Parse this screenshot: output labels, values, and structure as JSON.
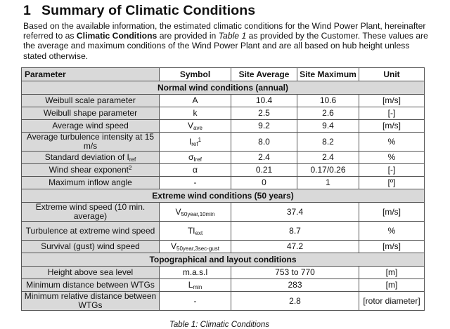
{
  "heading": {
    "number": "1",
    "title": "Summary of Climatic Conditions"
  },
  "intro": {
    "part1": "Based on the available information, the estimated climatic conditions for the Wind Power Plant, hereinafter referred to as ",
    "bold": "Climatic Conditions",
    "part2": " are provided in ",
    "italic": "Table 1",
    "part3": " as provided by the Customer. These values are the average and maximum conditions of the Wind Power Plant and are all based on hub height unless stated otherwise."
  },
  "table": {
    "headers": [
      "Parameter",
      "Symbol",
      "Site Average",
      "Site Maximum",
      "Unit"
    ],
    "sections": [
      {
        "title": "Normal wind conditions (annual)",
        "rows": [
          {
            "param": "Weibull scale parameter",
            "sym": "A",
            "sub": "",
            "sup": "",
            "avg": "10.4",
            "max": "10.6",
            "unit": "[m/s]"
          },
          {
            "param": "Weibull shape parameter",
            "sym": "k",
            "sub": "",
            "sup": "",
            "avg": "2.5",
            "max": "2.6",
            "unit": "[-]"
          },
          {
            "param": "Average wind speed",
            "sym": "V",
            "sub": "ave",
            "sup": "",
            "avg": "9.2",
            "max": "9.4",
            "unit": "[m/s]"
          },
          {
            "param": "Average turbulence intensity at 15 m/s",
            "sym": "I",
            "sub": "ref",
            "sup": "1",
            "avg": "8.0",
            "max": "8.2",
            "unit": "%"
          },
          {
            "param": "Standard deviation of I",
            "param_sub": "ref",
            "sym": "σ",
            "sub": "Iref",
            "sup": "",
            "avg": "2.4",
            "max": "2.4",
            "unit": "%"
          },
          {
            "param": "Wind shear exponent",
            "param_sup": "2",
            "sym": "α",
            "sub": "",
            "sup": "",
            "avg": "0.21",
            "max": "0.17/0.26",
            "unit": "[-]"
          },
          {
            "param": "Maximum inflow angle",
            "sym": "-",
            "sub": "",
            "sup": "",
            "avg": "0",
            "max": "1",
            "unit": "[º]"
          }
        ]
      },
      {
        "title": "Extreme wind conditions (50 years)",
        "rows": [
          {
            "param": "Extreme wind speed (10 min. average)",
            "sym": "V",
            "sub": "50year,10min",
            "value": "37.4",
            "unit": "[m/s]"
          },
          {
            "param": "Turbulence at extreme wind speed",
            "sym": "TI",
            "sub": "ext",
            "value": "8.7",
            "unit": "%"
          },
          {
            "param": "Survival (gust) wind speed",
            "sym": "V",
            "sub": "50year,3sec-gust",
            "value": "47.2",
            "unit": "[m/s]"
          }
        ]
      },
      {
        "title": "Topographical and layout conditions",
        "rows": [
          {
            "param": "Height above sea level",
            "sym": "m.a.s.l",
            "sub": "",
            "value": "753 to 770",
            "unit": "[m]"
          },
          {
            "param": "Minimum distance between WTGs",
            "sym": "L",
            "sub": "min",
            "value": "283",
            "unit": "[m]"
          },
          {
            "param": "Minimum relative distance between WTGs",
            "sym": "-",
            "sub": "",
            "value": "2.8",
            "unit": "[rotor diameter]"
          }
        ]
      }
    ]
  },
  "caption": "Table 1: Climatic Conditions"
}
